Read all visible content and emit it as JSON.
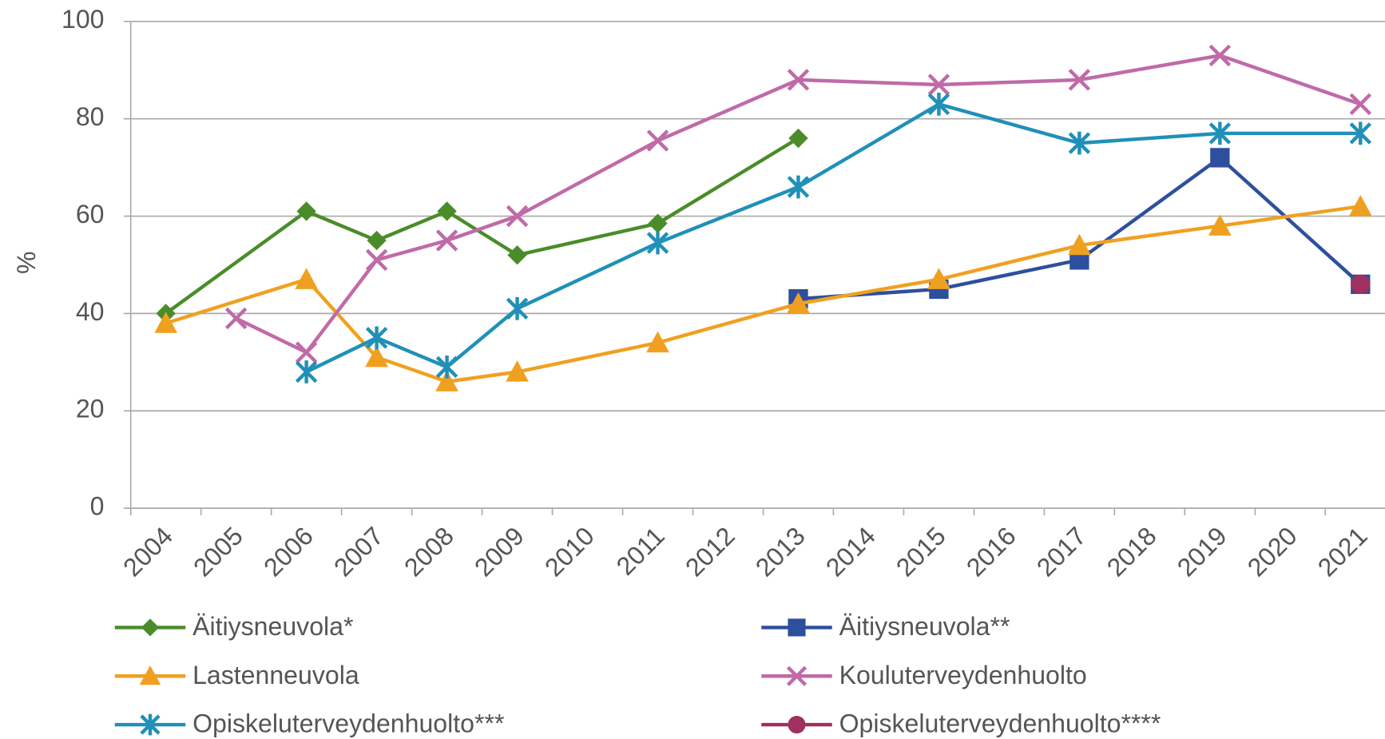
{
  "chart_data": {
    "type": "line",
    "y_label": "%",
    "xlim": [
      2003.5,
      2021.5
    ],
    "xticks": [
      2004,
      2005,
      2006,
      2007,
      2008,
      2009,
      2010,
      2011,
      2012,
      2013,
      2014,
      2015,
      2016,
      2017,
      2018,
      2019,
      2020,
      2021
    ],
    "ylim": [
      0,
      100
    ],
    "yticks": [
      0,
      20,
      40,
      60,
      80,
      100
    ],
    "grid": true,
    "series": [
      {
        "name": "Äitiysneuvola*",
        "color": "#4a8c2a",
        "marker": "diamond",
        "x": [
          2004,
          2006,
          2007,
          2008,
          2009,
          2011,
          2013
        ],
        "values": [
          40,
          61,
          55,
          61,
          52,
          58.5,
          76
        ]
      },
      {
        "name": "Äitiysneuvola**",
        "color": "#2e4f9e",
        "marker": "square",
        "x": [
          2013,
          2015,
          2017,
          2019,
          2021
        ],
        "values": [
          43,
          45,
          51,
          72,
          46
        ]
      },
      {
        "name": "Lastenneuvola",
        "color": "#f0a020",
        "marker": "triangle",
        "x": [
          2004,
          2006,
          2007,
          2008,
          2009,
          2011,
          2013,
          2015,
          2017,
          2019,
          2021
        ],
        "values": [
          38,
          47,
          31,
          26,
          28,
          34,
          42,
          47,
          54,
          58,
          62
        ]
      },
      {
        "name": "Kouluterveydenhuolto",
        "color": "#c06aa8",
        "marker": "x",
        "x": [
          2005,
          2006,
          2007,
          2008,
          2009,
          2011,
          2013,
          2015,
          2017,
          2019,
          2021
        ],
        "values": [
          39,
          32,
          51,
          55,
          60,
          75.5,
          88,
          87,
          88,
          93,
          83
        ]
      },
      {
        "name": "Opiskeluterveydenhuolto***",
        "color": "#2090b8",
        "marker": "asterisk",
        "x": [
          2006,
          2007,
          2008,
          2009,
          2011,
          2013,
          2015,
          2017,
          2019,
          2021
        ],
        "values": [
          28,
          35,
          29,
          41,
          54.5,
          66,
          83,
          75,
          77,
          77
        ]
      },
      {
        "name": "Opiskeluterveydenhuolto****",
        "color": "#a0305e",
        "marker": "circle",
        "x": [
          2021
        ],
        "values": [
          46
        ]
      }
    ]
  }
}
